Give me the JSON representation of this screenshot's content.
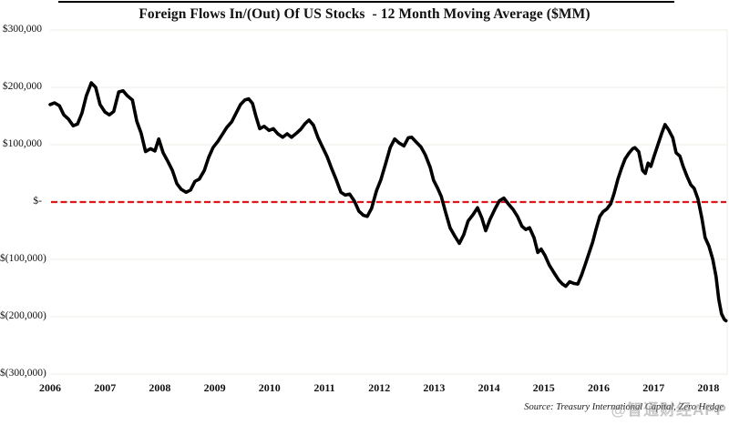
{
  "title": "Foreign Flows In/(Out) Of US Stocks  - 12 Month Moving Average ($MM)",
  "source": "Source: Treasury International Capital, Zero Hedge",
  "watermark": "@智通财经APP",
  "colors": {
    "line": "#000000",
    "zero_line": "#e0151b",
    "grid": "#f0ede5",
    "text": "#111111",
    "watermark": "#8f8f8f"
  },
  "chart_data": {
    "type": "line",
    "title": "Foreign Flows In/(Out) Of US Stocks  - 12 Month Moving Average ($MM)",
    "xlabel": "",
    "ylabel": "",
    "xlim": [
      2006.0,
      2018.35
    ],
    "ylim": [
      -300000,
      300000
    ],
    "grid": "horizontal-only",
    "legend": "none",
    "x_ticks": [
      2006,
      2007,
      2008,
      2009,
      2010,
      2011,
      2012,
      2013,
      2014,
      2015,
      2016,
      2017,
      2018
    ],
    "y_ticks": [
      {
        "value": 300000,
        "label": "$300,000"
      },
      {
        "value": 200000,
        "label": "$200,000"
      },
      {
        "value": 100000,
        "label": "$100,000"
      },
      {
        "value": 0,
        "label": "$-"
      },
      {
        "value": -100000,
        "label": "$(100,000)"
      },
      {
        "value": -200000,
        "label": "$(200,000)"
      },
      {
        "value": -300000,
        "label": "$(300,000)"
      }
    ],
    "zero_line": {
      "value": 0,
      "style": "dashed",
      "color": "#e0151b"
    },
    "series": [
      {
        "name": "Foreign flows into US stocks, 12-month moving average ($MM)",
        "color": "#000000",
        "points": [
          [
            2006.0,
            170000
          ],
          [
            2006.08,
            173000
          ],
          [
            2006.17,
            168000
          ],
          [
            2006.25,
            152000
          ],
          [
            2006.33,
            145000
          ],
          [
            2006.42,
            133000
          ],
          [
            2006.5,
            136000
          ],
          [
            2006.58,
            155000
          ],
          [
            2006.66,
            185000
          ],
          [
            2006.75,
            208000
          ],
          [
            2006.83,
            200000
          ],
          [
            2006.91,
            170000
          ],
          [
            2007.0,
            157000
          ],
          [
            2007.08,
            152000
          ],
          [
            2007.16,
            158000
          ],
          [
            2007.25,
            192000
          ],
          [
            2007.33,
            194000
          ],
          [
            2007.41,
            185000
          ],
          [
            2007.5,
            178000
          ],
          [
            2007.58,
            141000
          ],
          [
            2007.66,
            120000
          ],
          [
            2007.74,
            88000
          ],
          [
            2007.83,
            93000
          ],
          [
            2007.91,
            89000
          ],
          [
            2007.98,
            110000
          ],
          [
            2008.06,
            86000
          ],
          [
            2008.14,
            72000
          ],
          [
            2008.23,
            55000
          ],
          [
            2008.31,
            32000
          ],
          [
            2008.39,
            22000
          ],
          [
            2008.48,
            17000
          ],
          [
            2008.56,
            21000
          ],
          [
            2008.64,
            36000
          ],
          [
            2008.72,
            40000
          ],
          [
            2008.81,
            55000
          ],
          [
            2008.89,
            78000
          ],
          [
            2008.97,
            95000
          ],
          [
            2009.06,
            106000
          ],
          [
            2009.14,
            118000
          ],
          [
            2009.22,
            130000
          ],
          [
            2009.31,
            140000
          ],
          [
            2009.39,
            155000
          ],
          [
            2009.47,
            170000
          ],
          [
            2009.55,
            178000
          ],
          [
            2009.62,
            180000
          ],
          [
            2009.69,
            172000
          ],
          [
            2009.75,
            150000
          ],
          [
            2009.82,
            128000
          ],
          [
            2009.9,
            132000
          ],
          [
            2009.99,
            125000
          ],
          [
            2010.07,
            128000
          ],
          [
            2010.15,
            119000
          ],
          [
            2010.24,
            113000
          ],
          [
            2010.32,
            119000
          ],
          [
            2010.4,
            113000
          ],
          [
            2010.49,
            120000
          ],
          [
            2010.57,
            127000
          ],
          [
            2010.65,
            137000
          ],
          [
            2010.72,
            143000
          ],
          [
            2010.8,
            134000
          ],
          [
            2010.88,
            113000
          ],
          [
            2010.97,
            95000
          ],
          [
            2011.05,
            79000
          ],
          [
            2011.13,
            59000
          ],
          [
            2011.22,
            38000
          ],
          [
            2011.3,
            17000
          ],
          [
            2011.38,
            12000
          ],
          [
            2011.46,
            14000
          ],
          [
            2011.55,
            1000
          ],
          [
            2011.63,
            -16000
          ],
          [
            2011.71,
            -23000
          ],
          [
            2011.78,
            -25000
          ],
          [
            2011.86,
            -11000
          ],
          [
            2011.95,
            20000
          ],
          [
            2012.03,
            39000
          ],
          [
            2012.11,
            65000
          ],
          [
            2012.2,
            95000
          ],
          [
            2012.28,
            110000
          ],
          [
            2012.36,
            103000
          ],
          [
            2012.45,
            98000
          ],
          [
            2012.53,
            112000
          ],
          [
            2012.59,
            113000
          ],
          [
            2012.68,
            104000
          ],
          [
            2012.76,
            96000
          ],
          [
            2012.84,
            82000
          ],
          [
            2012.93,
            60000
          ],
          [
            2012.99,
            38000
          ],
          [
            2013.06,
            25000
          ],
          [
            2013.13,
            10000
          ],
          [
            2013.21,
            -18000
          ],
          [
            2013.29,
            -45000
          ],
          [
            2013.38,
            -60000
          ],
          [
            2013.46,
            -72000
          ],
          [
            2013.54,
            -57000
          ],
          [
            2013.62,
            -33000
          ],
          [
            2013.71,
            -22000
          ],
          [
            2013.79,
            -10000
          ],
          [
            2013.87,
            -28000
          ],
          [
            2013.94,
            -50000
          ],
          [
            2014.02,
            -30000
          ],
          [
            2014.11,
            -12000
          ],
          [
            2014.19,
            2000
          ],
          [
            2014.27,
            7000
          ],
          [
            2014.35,
            -3000
          ],
          [
            2014.44,
            -13000
          ],
          [
            2014.52,
            -25000
          ],
          [
            2014.6,
            -42000
          ],
          [
            2014.67,
            -48000
          ],
          [
            2014.74,
            -45000
          ],
          [
            2014.82,
            -62000
          ],
          [
            2014.89,
            -88000
          ],
          [
            2014.95,
            -82000
          ],
          [
            2015.02,
            -93000
          ],
          [
            2015.1,
            -110000
          ],
          [
            2015.19,
            -124000
          ],
          [
            2015.27,
            -136000
          ],
          [
            2015.34,
            -143000
          ],
          [
            2015.4,
            -147000
          ],
          [
            2015.47,
            -139000
          ],
          [
            2015.55,
            -142000
          ],
          [
            2015.62,
            -143000
          ],
          [
            2015.69,
            -127000
          ],
          [
            2015.75,
            -110000
          ],
          [
            2015.82,
            -90000
          ],
          [
            2015.89,
            -70000
          ],
          [
            2015.95,
            -48000
          ],
          [
            2016.02,
            -25000
          ],
          [
            2016.08,
            -17000
          ],
          [
            2016.15,
            -12000
          ],
          [
            2016.22,
            -3000
          ],
          [
            2016.28,
            15000
          ],
          [
            2016.35,
            40000
          ],
          [
            2016.42,
            60000
          ],
          [
            2016.48,
            75000
          ],
          [
            2016.55,
            85000
          ],
          [
            2016.62,
            93000
          ],
          [
            2016.66,
            95000
          ],
          [
            2016.73,
            88000
          ],
          [
            2016.8,
            55000
          ],
          [
            2016.85,
            50000
          ],
          [
            2016.9,
            68000
          ],
          [
            2016.95,
            62000
          ],
          [
            2017.01,
            80000
          ],
          [
            2017.08,
            100000
          ],
          [
            2017.15,
            120000
          ],
          [
            2017.21,
            135000
          ],
          [
            2017.28,
            125000
          ],
          [
            2017.35,
            112000
          ],
          [
            2017.41,
            86000
          ],
          [
            2017.48,
            80000
          ],
          [
            2017.54,
            62000
          ],
          [
            2017.61,
            45000
          ],
          [
            2017.68,
            30000
          ],
          [
            2017.74,
            24000
          ],
          [
            2017.81,
            5000
          ],
          [
            2017.88,
            -28000
          ],
          [
            2017.94,
            -62000
          ],
          [
            2018.01,
            -77000
          ],
          [
            2018.08,
            -100000
          ],
          [
            2018.14,
            -130000
          ],
          [
            2018.19,
            -170000
          ],
          [
            2018.24,
            -195000
          ],
          [
            2018.29,
            -205000
          ],
          [
            2018.32,
            -207000
          ]
        ]
      }
    ]
  }
}
